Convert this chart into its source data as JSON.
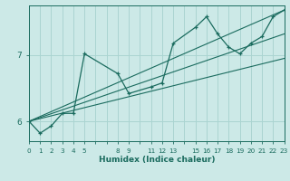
{
  "title": "",
  "xlabel": "Humidex (Indice chaleur)",
  "bg_color": "#cce9e7",
  "grid_color": "#aad4d1",
  "line_color": "#1a6b5e",
  "xlim": [
    0,
    23
  ],
  "ylim": [
    5.7,
    7.75
  ],
  "yticks": [
    6,
    7
  ],
  "xtick_labels": [
    "0",
    "1",
    "2",
    "3",
    "4",
    "5",
    "",
    "",
    "8",
    "9",
    "",
    "11",
    "12",
    "13",
    "",
    "15",
    "16",
    "17",
    "18",
    "19",
    "20",
    "21",
    "22",
    "23"
  ],
  "xtick_positions": [
    0,
    1,
    2,
    3,
    4,
    5,
    6,
    7,
    8,
    9,
    10,
    11,
    12,
    13,
    14,
    15,
    16,
    17,
    18,
    19,
    20,
    21,
    22,
    23
  ],
  "lines": [
    {
      "x": [
        0,
        1,
        2,
        3,
        4,
        5,
        8,
        9,
        11,
        12,
        13,
        15,
        16,
        17,
        18,
        19,
        20,
        21,
        22,
        23
      ],
      "y": [
        6.0,
        5.82,
        5.93,
        6.12,
        6.12,
        7.02,
        6.72,
        6.42,
        6.52,
        6.58,
        7.18,
        7.42,
        7.58,
        7.32,
        7.12,
        7.02,
        7.18,
        7.28,
        7.58,
        7.68
      ],
      "marker": true
    },
    {
      "x": [
        0,
        23
      ],
      "y": [
        6.0,
        7.68
      ],
      "marker": false
    },
    {
      "x": [
        0,
        23
      ],
      "y": [
        6.0,
        7.32
      ],
      "marker": false
    },
    {
      "x": [
        0,
        23
      ],
      "y": [
        6.0,
        6.95
      ],
      "marker": false
    }
  ]
}
